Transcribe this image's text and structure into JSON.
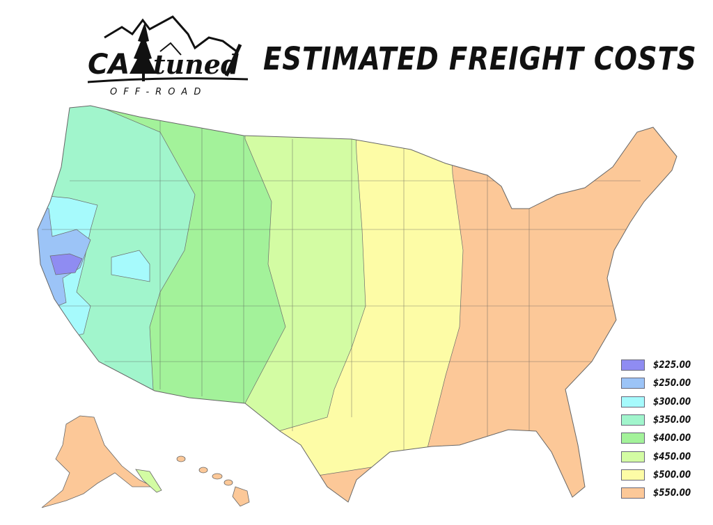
{
  "header": {
    "logo_text": "CA tuned",
    "logo_subtext": "OFF-ROAD",
    "title": "ESTIMATED FREIGHT COSTS"
  },
  "legend": [
    {
      "label": "$225.00",
      "color": "#8f8cf2"
    },
    {
      "label": "$250.00",
      "color": "#9cc4f7"
    },
    {
      "label": "$300.00",
      "color": "#a6fafc"
    },
    {
      "label": "$350.00",
      "color": "#a1f5cc"
    },
    {
      "label": "$400.00",
      "color": "#a3f29a"
    },
    {
      "label": "$450.00",
      "color": "#d3fca3"
    },
    {
      "label": "$500.00",
      "color": "#fdfca6"
    },
    {
      "label": "$550.00",
      "color": "#fcc898"
    }
  ]
}
